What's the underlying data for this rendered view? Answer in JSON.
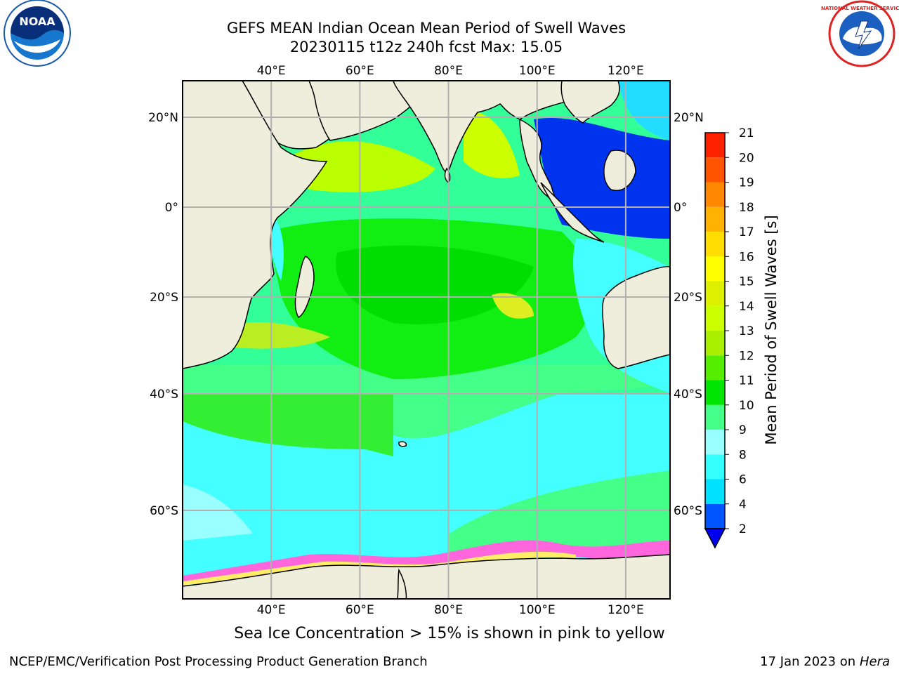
{
  "title_line1": "GEFS MEAN Indian Ocean Mean Period of Swell Waves",
  "title_line2": "20230115 t12z 240h fcst   Max: 15.05",
  "caption": "Sea Ice Concentration > 15% is shown in pink to yellow",
  "footer_left": "NCEP/EMC/Verification Post Processing Product Generation Branch",
  "footer_date": "17 Jan 2023 on ",
  "footer_host": "Hera",
  "logos": {
    "noaa": "NOAA",
    "nws": "NATIONAL WEATHER SERVICE"
  },
  "map": {
    "lon_ticks": [
      "40°E",
      "60°E",
      "80°E",
      "100°E",
      "120°E"
    ],
    "lat_ticks": [
      "20°N",
      "0°",
      "20°S",
      "40°S",
      "60°S"
    ],
    "lon_values": [
      40,
      60,
      80,
      100,
      120
    ],
    "lat_values": [
      20,
      0,
      -20,
      -40,
      -60
    ],
    "lon_range": [
      20,
      130
    ],
    "lat_range": [
      -72,
      28
    ],
    "land_color": "#efeedc",
    "grid": true
  },
  "colorbar": {
    "title": "Mean Period of Swell Waves [s]",
    "levels": [
      "2",
      "4",
      "6",
      "8",
      "9",
      "10",
      "11",
      "12",
      "13",
      "14",
      "15",
      "16",
      "17",
      "18",
      "19",
      "20",
      "21"
    ],
    "colors": [
      "#0055ff",
      "#00e1ff",
      "#33ffff",
      "#99ffff",
      "#44ff88",
      "#00e600",
      "#55ee00",
      "#aaee00",
      "#ccff00",
      "#ddf000",
      "#ffff00",
      "#ffdd00",
      "#ffb300",
      "#ff8800",
      "#ff5500",
      "#ff2200"
    ],
    "under_color": "#0000ee"
  }
}
